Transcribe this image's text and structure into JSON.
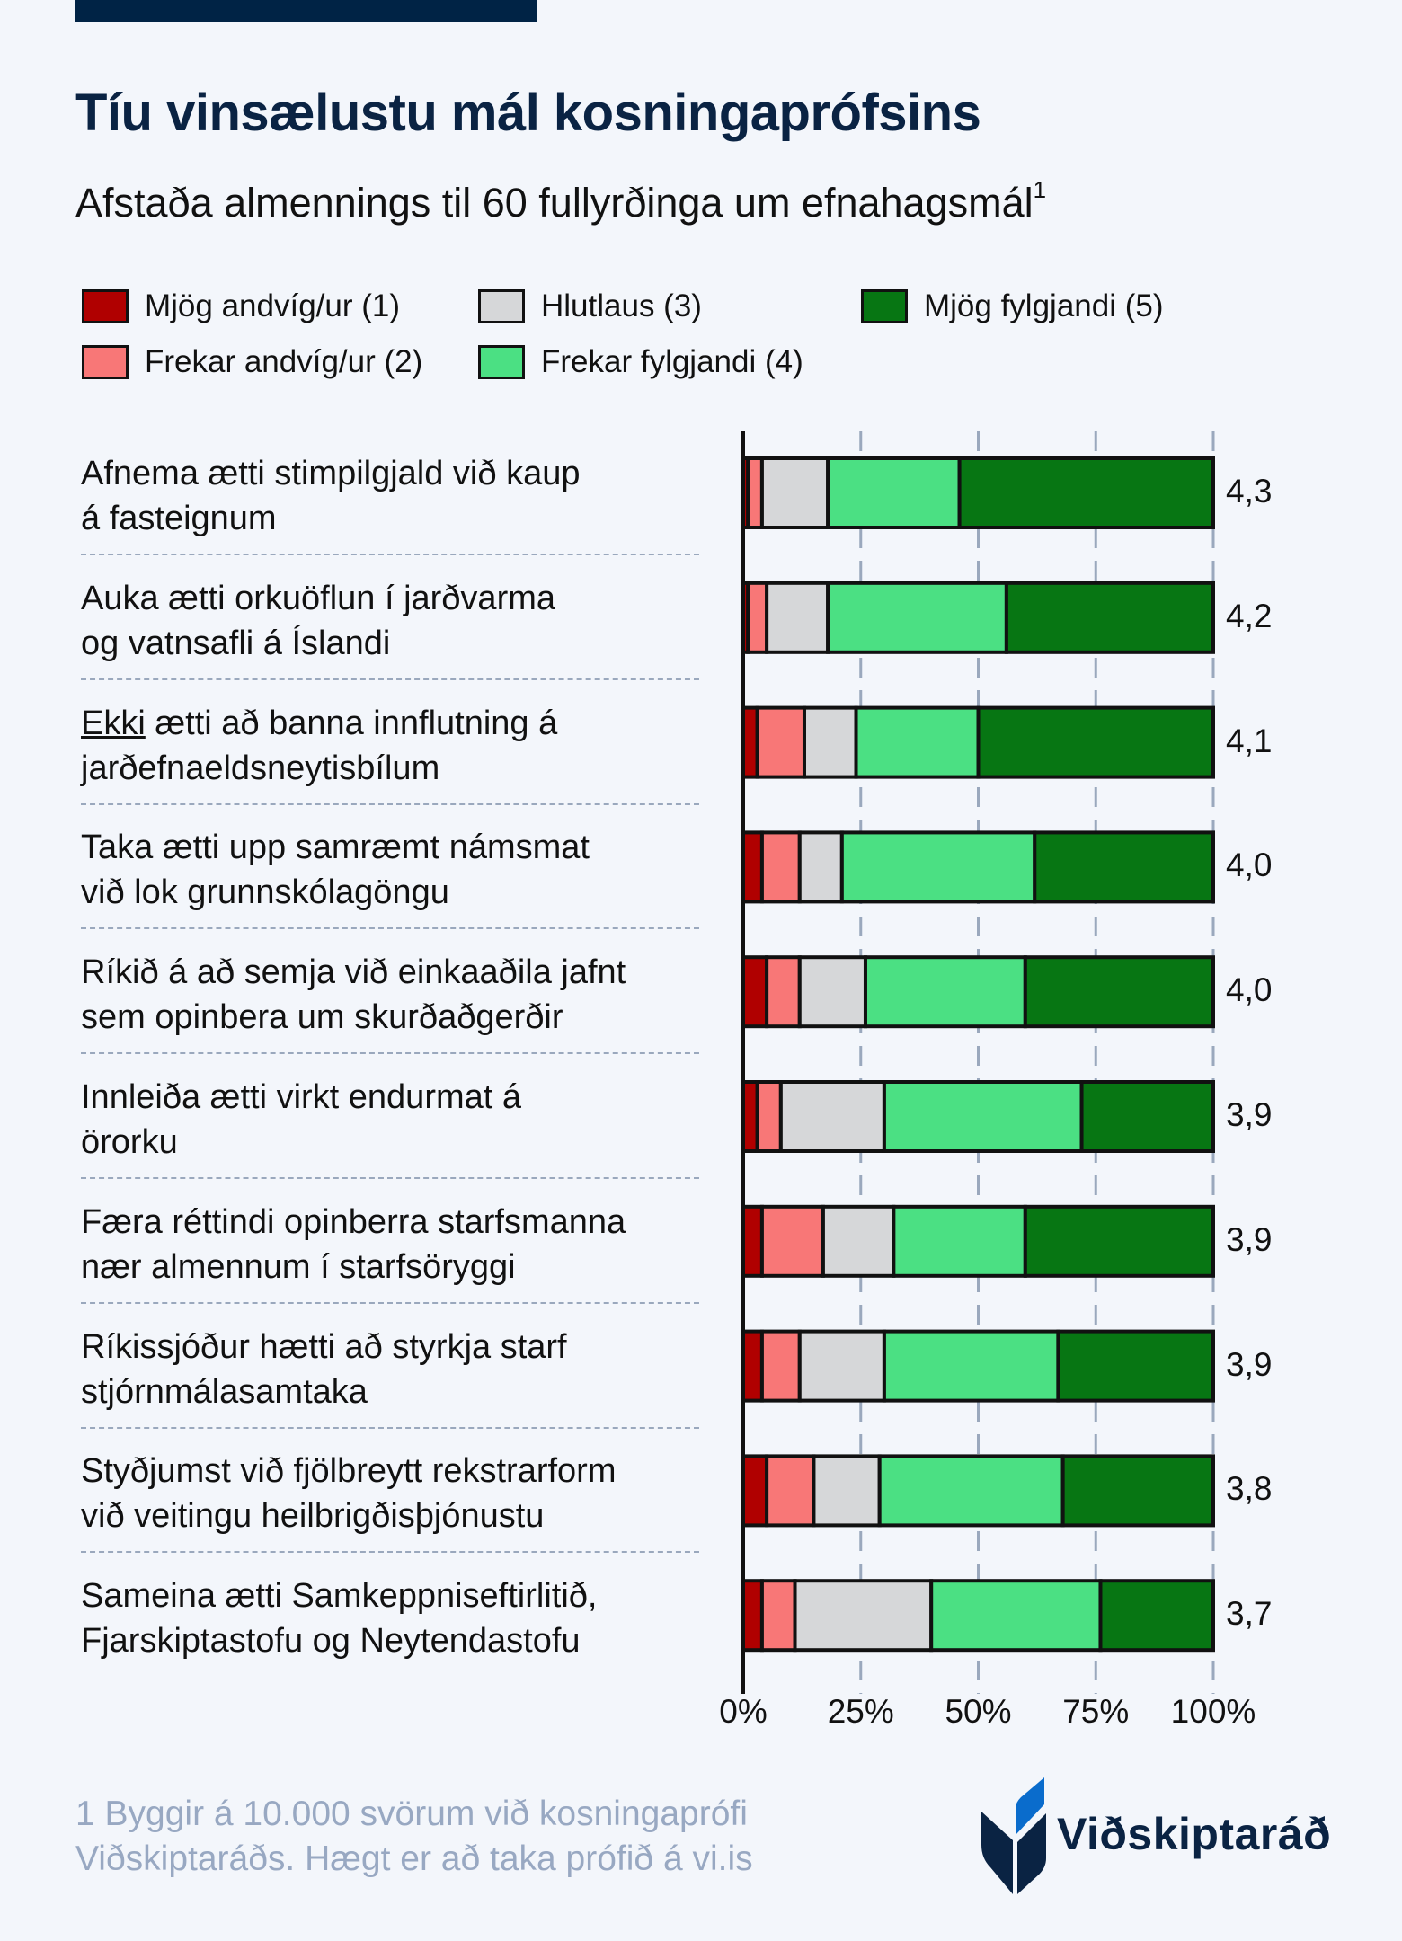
{
  "title": "Tíu vinsælustu mál kosningaprófsins",
  "subtitle": "Afstaða almennings til 60 fullyrðinga um efnahagsmál",
  "subtitle_footnote_mark": "1",
  "footnote": [
    "1 Byggir á 10.000 svörum við kosningaprófi",
    "Viðskiptaráðs. Hægt er að taka prófið á vi.is"
  ],
  "logo": {
    "text": "Viðskiptaráð",
    "colors": {
      "navy": "#0a2343",
      "blue": "#0a6ccc"
    }
  },
  "colors": {
    "background": "#f3f6fb",
    "title": "#0a2343",
    "grid": "#9aa8bd",
    "footnote": "#98a8c2"
  },
  "chart_data": {
    "type": "bar",
    "orientation": "horizontal",
    "stacked": true,
    "percent_scale": true,
    "legend_placement": "top",
    "grid": true,
    "xlim": [
      0,
      100
    ],
    "xticks": [
      "0%",
      "25%",
      "50%",
      "75%",
      "100%"
    ],
    "legend": [
      {
        "name": "Mjög andvíg/ur (1)",
        "color": "#b00000"
      },
      {
        "name": "Frekar andvíg/ur (2)",
        "color": "#f87777"
      },
      {
        "name": "Hlutlaus (3)",
        "color": "#d6d7d9"
      },
      {
        "name": "Frekar fylgjandi (4)",
        "color": "#4be083"
      },
      {
        "name": "Mjög fylgjandi (5)",
        "color": "#077613"
      }
    ],
    "categories": [
      {
        "lines": [
          "Afnema ætti stimpilgjald við kaup",
          "á fasteignum"
        ],
        "score": "4,3",
        "values": [
          1,
          3,
          14,
          28,
          54
        ]
      },
      {
        "lines": [
          "Auka ætti orkuöflun í jarðvarma",
          "og vatnsafli á Íslandi"
        ],
        "score": "4,2",
        "values": [
          1,
          4,
          13,
          38,
          44
        ]
      },
      {
        "underline": "Ekki",
        "lines": [
          " ætti að banna innflutning á",
          "jarðefnaeldsneytisbílum"
        ],
        "score": "4,1",
        "values": [
          3,
          10,
          11,
          26,
          50
        ]
      },
      {
        "lines": [
          "Taka ætti upp samræmt námsmat",
          "við lok grunnskólagöngu"
        ],
        "score": "4,0",
        "values": [
          4,
          8,
          9,
          41,
          38
        ]
      },
      {
        "lines": [
          "Ríkið á að semja við einkaaðila jafnt",
          "sem opinbera um skurðaðgerðir"
        ],
        "score": "4,0",
        "values": [
          5,
          7,
          14,
          34,
          40
        ]
      },
      {
        "lines": [
          "Innleiða ætti virkt endurmat á",
          "örorku"
        ],
        "score": "3,9",
        "values": [
          3,
          5,
          22,
          42,
          28
        ]
      },
      {
        "lines": [
          "Færa réttindi opinberra starfsmanna",
          "nær almennum í starfsöryggi"
        ],
        "score": "3,9",
        "values": [
          4,
          13,
          15,
          28,
          40
        ]
      },
      {
        "lines": [
          "Ríkissjóður hætti að styrkja starf",
          "stjórnmálasamtaka"
        ],
        "score": "3,9",
        "values": [
          4,
          8,
          18,
          37,
          33
        ]
      },
      {
        "lines": [
          "Styðjumst við fjölbreytt rekstrarform",
          "við veitingu heilbrigðisþjónustu"
        ],
        "score": "3,8",
        "values": [
          5,
          10,
          14,
          39,
          32
        ]
      },
      {
        "lines": [
          "Sameina ætti Samkeppniseftirlitið,",
          "Fjarskiptastofu og Neytendastofu"
        ],
        "score": "3,7",
        "values": [
          4,
          7,
          29,
          36,
          24
        ]
      }
    ]
  }
}
